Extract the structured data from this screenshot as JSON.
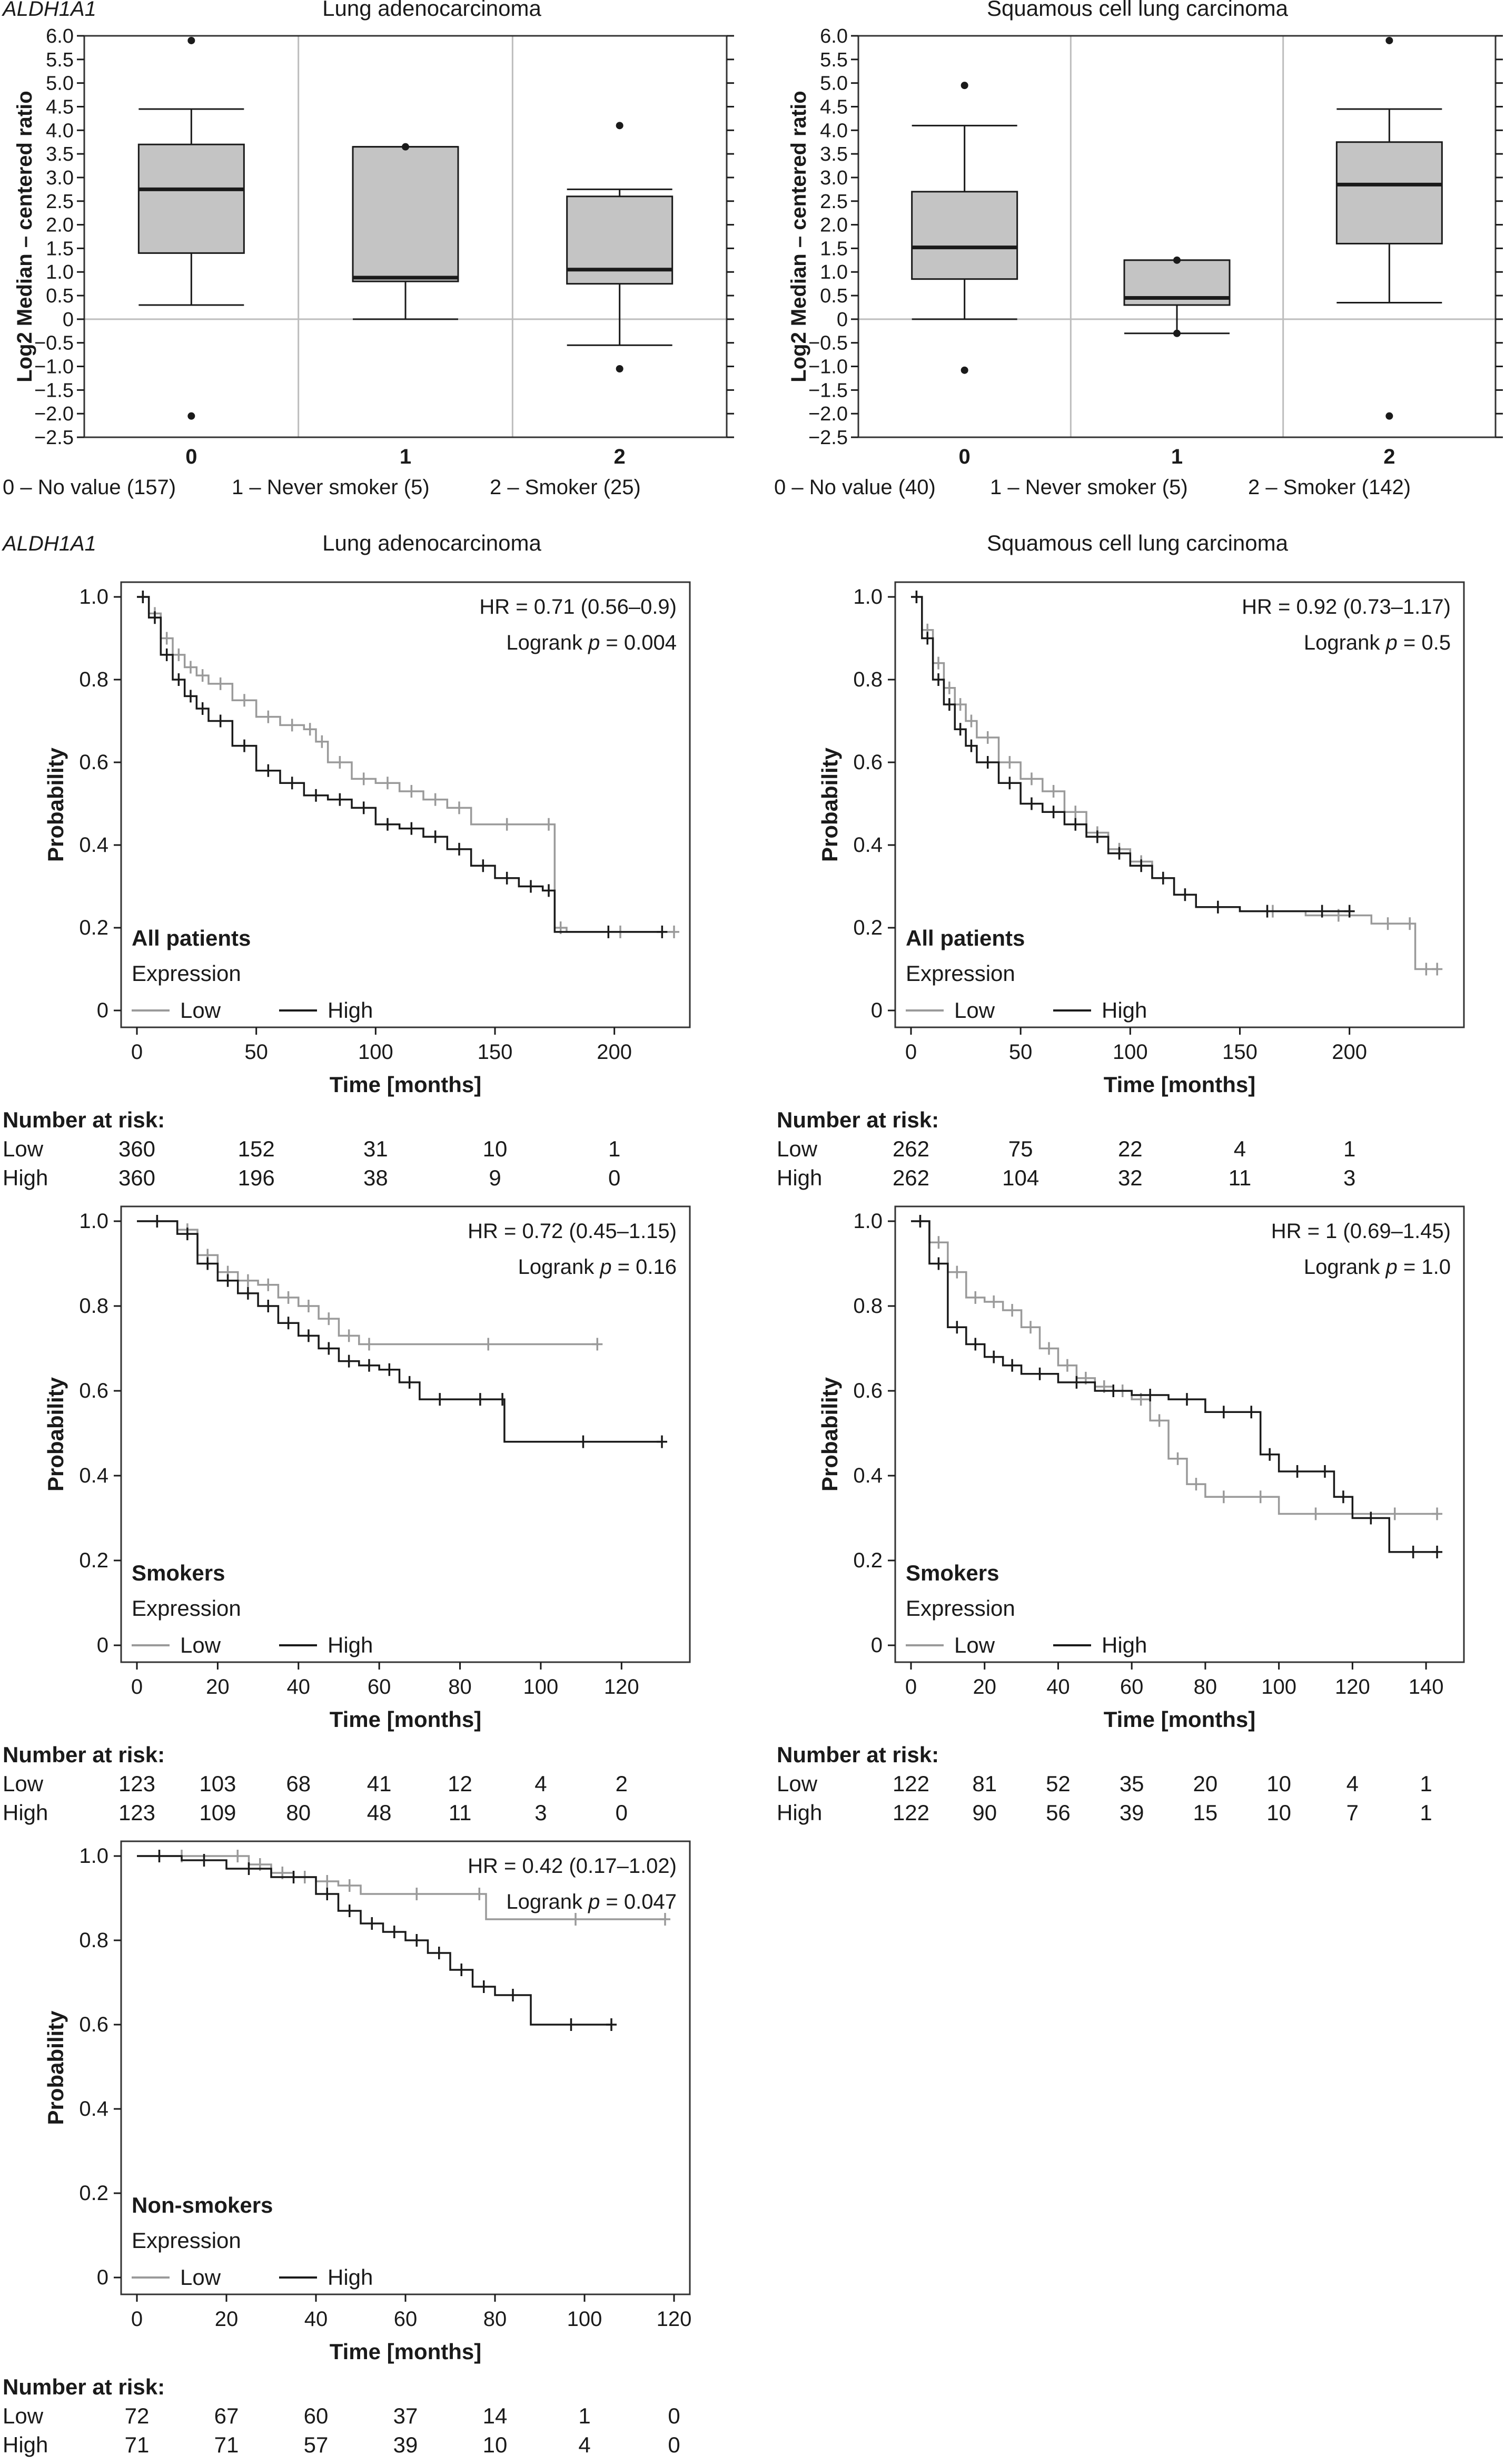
{
  "colors": {
    "low": "#9a9a9a",
    "high": "#1a1a1a",
    "box_fill": "#c4c4c4",
    "grid": "#bdbdbd"
  },
  "gene": "ALDH1A1",
  "boxplot_ylabel": "Log2 Median – centered ratio",
  "km_ylabel": "Probability",
  "km_xlabel": "Time [months]",
  "expression_label": "Expression",
  "legend_low": "Low",
  "legend_high": "High",
  "risk_title": "Number at risk:",
  "chart_data": [
    {
      "id": "box_adeno",
      "type": "box",
      "title": "Lung adenocarcinoma",
      "ylim": [
        -2.5,
        6.0
      ],
      "yticks": [
        "6.0",
        "5.5",
        "5.0",
        "4.5",
        "4.0",
        "3.5",
        "3.0",
        "2.5",
        "2.0",
        "1.5",
        "1.0",
        "0.5",
        "0",
        "−0.5",
        "−1.0",
        "−1.5",
        "−2.0",
        "−2.5"
      ],
      "categories": [
        "0",
        "1",
        "2"
      ],
      "category_labels": [
        "0 – No value (157)",
        "1 – Never smoker (5)",
        "2 – Smoker (25)"
      ],
      "boxes": [
        {
          "whisker_low": 0.3,
          "q1": 1.4,
          "median": 2.75,
          "q3": 3.7,
          "whisker_high": 4.45,
          "outliers": [
            5.9,
            -2.05
          ]
        },
        {
          "whisker_low": 0.0,
          "q1": 0.8,
          "median": 0.88,
          "q3": 3.65,
          "whisker_high": 3.65,
          "outliers": [
            3.65
          ]
        },
        {
          "whisker_low": -0.55,
          "q1": 0.75,
          "median": 1.05,
          "q3": 2.6,
          "whisker_high": 2.75,
          "outliers": [
            4.1,
            -1.05
          ]
        }
      ]
    },
    {
      "id": "box_squam",
      "type": "box",
      "title": "Squamous cell lung carcinoma",
      "ylim": [
        -2.5,
        6.0
      ],
      "yticks": [
        "6.0",
        "5.5",
        "5.0",
        "4.5",
        "4.0",
        "3.5",
        "3.0",
        "2.5",
        "2.0",
        "1.5",
        "1.0",
        "0.5",
        "0",
        "−0.5",
        "−1.0",
        "−1.5",
        "−2.0",
        "−2.5"
      ],
      "categories": [
        "0",
        "1",
        "2"
      ],
      "category_labels": [
        "0 – No value (40)",
        "1 – Never smoker (5)",
        "2 – Smoker (142)"
      ],
      "boxes": [
        {
          "whisker_low": 0.0,
          "q1": 0.85,
          "median": 1.52,
          "q3": 2.7,
          "whisker_high": 4.1,
          "outliers": [
            4.95,
            -1.08
          ]
        },
        {
          "whisker_low": -0.3,
          "q1": 0.3,
          "median": 0.45,
          "q3": 1.25,
          "whisker_high": 1.25,
          "outliers": [
            1.25,
            -0.3
          ]
        },
        {
          "whisker_low": 0.35,
          "q1": 1.6,
          "median": 2.85,
          "q3": 3.75,
          "whisker_high": 4.45,
          "outliers": [
            5.9,
            -2.05
          ]
        }
      ]
    },
    {
      "id": "km_adeno_all",
      "type": "line",
      "title": "Lung adenocarcinoma",
      "group": "All patients",
      "hr": "HR = 0.71 (0.56–0.9)",
      "logrank_prefix": "Logrank ",
      "logrank_value": " = 0.004",
      "xlim": [
        0,
        225
      ],
      "xticks": [
        0,
        50,
        100,
        150,
        200
      ],
      "ylim": [
        0,
        1.05
      ],
      "yticks": [
        "0",
        "0.2",
        "0.4",
        "0.6",
        "0.8",
        "1.0"
      ],
      "series": [
        {
          "name": "Low",
          "x": [
            0,
            5,
            10,
            15,
            20,
            25,
            30,
            40,
            50,
            60,
            70,
            75,
            80,
            90,
            100,
            110,
            120,
            130,
            140,
            170,
            175,
            180,
            225
          ],
          "y": [
            1.0,
            0.96,
            0.9,
            0.86,
            0.83,
            0.81,
            0.79,
            0.75,
            0.71,
            0.69,
            0.68,
            0.65,
            0.6,
            0.56,
            0.55,
            0.53,
            0.51,
            0.49,
            0.45,
            0.45,
            0.2,
            0.19,
            0.19
          ]
        },
        {
          "name": "High",
          "x": [
            0,
            5,
            10,
            15,
            20,
            25,
            30,
            40,
            50,
            60,
            70,
            80,
            90,
            100,
            110,
            120,
            130,
            140,
            150,
            160,
            170,
            175,
            220
          ],
          "y": [
            1.0,
            0.95,
            0.86,
            0.8,
            0.76,
            0.73,
            0.7,
            0.64,
            0.58,
            0.55,
            0.52,
            0.51,
            0.49,
            0.45,
            0.44,
            0.42,
            0.39,
            0.35,
            0.32,
            0.3,
            0.29,
            0.19,
            0.19
          ]
        }
      ],
      "risk_times": [
        0,
        50,
        100,
        150,
        200
      ],
      "risk": {
        "Low": [
          "360",
          "152",
          "31",
          "10",
          "1"
        ],
        "High": [
          "360",
          "196",
          "38",
          "9",
          "0"
        ]
      }
    },
    {
      "id": "km_squam_all",
      "type": "line",
      "title": "Squamous cell lung carcinoma",
      "group": "All patients",
      "hr": "HR = 0.92 (0.73–1.17)",
      "logrank_prefix": "Logrank ",
      "logrank_value": " = 0.5",
      "xlim": [
        0,
        245
      ],
      "xticks": [
        0,
        50,
        100,
        150,
        200
      ],
      "ylim": [
        0,
        1.05
      ],
      "yticks": [
        "0",
        "0.2",
        "0.4",
        "0.6",
        "0.8",
        "1.0"
      ],
      "series": [
        {
          "name": "Low",
          "x": [
            0,
            5,
            10,
            15,
            20,
            25,
            30,
            40,
            50,
            60,
            70,
            80,
            90,
            100,
            110,
            120,
            130,
            150,
            180,
            210,
            225,
            230,
            240
          ],
          "y": [
            1.0,
            0.92,
            0.84,
            0.78,
            0.74,
            0.7,
            0.66,
            0.6,
            0.56,
            0.53,
            0.48,
            0.43,
            0.39,
            0.36,
            0.32,
            0.28,
            0.25,
            0.24,
            0.23,
            0.21,
            0.21,
            0.1,
            0.1
          ]
        },
        {
          "name": "High",
          "x": [
            0,
            5,
            10,
            15,
            20,
            25,
            30,
            40,
            50,
            60,
            70,
            80,
            90,
            100,
            110,
            120,
            130,
            150,
            175,
            200
          ],
          "y": [
            1.0,
            0.9,
            0.8,
            0.74,
            0.68,
            0.64,
            0.6,
            0.55,
            0.5,
            0.48,
            0.45,
            0.42,
            0.38,
            0.35,
            0.32,
            0.28,
            0.25,
            0.24,
            0.24,
            0.24
          ]
        }
      ],
      "risk_times": [
        0,
        50,
        100,
        150,
        200
      ],
      "risk": {
        "Low": [
          "262",
          "75",
          "22",
          "4",
          "1"
        ],
        "High": [
          "262",
          "104",
          "32",
          "11",
          "3"
        ]
      }
    },
    {
      "id": "km_adeno_smokers",
      "type": "line",
      "group": "Smokers",
      "hr": "HR = 0.72 (0.45–1.15)",
      "logrank_prefix": "Logrank ",
      "logrank_value": " = 0.16",
      "xlim": [
        0,
        133
      ],
      "xticks": [
        0,
        20,
        40,
        60,
        80,
        100,
        120
      ],
      "ylim": [
        0,
        1.05
      ],
      "yticks": [
        "0",
        "0.2",
        "0.4",
        "0.6",
        "0.8",
        "1.0"
      ],
      "series": [
        {
          "name": "Low",
          "x": [
            0,
            10,
            15,
            20,
            25,
            30,
            35,
            40,
            45,
            50,
            55,
            60,
            114
          ],
          "y": [
            1.0,
            0.98,
            0.92,
            0.88,
            0.86,
            0.85,
            0.82,
            0.8,
            0.77,
            0.73,
            0.71,
            0.71,
            0.71
          ]
        },
        {
          "name": "High",
          "x": [
            0,
            10,
            15,
            20,
            25,
            30,
            35,
            40,
            45,
            50,
            55,
            60,
            65,
            70,
            80,
            90,
            91,
            130
          ],
          "y": [
            1.0,
            0.97,
            0.9,
            0.86,
            0.83,
            0.8,
            0.76,
            0.73,
            0.7,
            0.67,
            0.66,
            0.65,
            0.62,
            0.58,
            0.58,
            0.58,
            0.48,
            0.48
          ]
        }
      ],
      "risk_times": [
        0,
        20,
        40,
        60,
        80,
        100,
        120
      ],
      "risk": {
        "Low": [
          "123",
          "103",
          "68",
          "41",
          "12",
          "4",
          "2"
        ],
        "High": [
          "123",
          "109",
          "80",
          "48",
          "11",
          "3",
          "0"
        ]
      }
    },
    {
      "id": "km_squam_smokers",
      "type": "line",
      "group": "Smokers",
      "hr": "HR = 1 (0.69–1.45)",
      "logrank_prefix": "Logrank ",
      "logrank_value": " = 1.0",
      "xlim": [
        0,
        146
      ],
      "xticks": [
        0,
        20,
        40,
        60,
        80,
        100,
        120,
        140
      ],
      "ylim": [
        0,
        1.05
      ],
      "yticks": [
        "0",
        "0.2",
        "0.4",
        "0.6",
        "0.8",
        "1.0"
      ],
      "series": [
        {
          "name": "Low",
          "x": [
            0,
            5,
            10,
            15,
            20,
            25,
            30,
            35,
            40,
            45,
            50,
            55,
            60,
            65,
            70,
            75,
            80,
            90,
            100,
            120,
            143
          ],
          "y": [
            1.0,
            0.95,
            0.88,
            0.82,
            0.81,
            0.79,
            0.75,
            0.7,
            0.66,
            0.63,
            0.61,
            0.6,
            0.58,
            0.53,
            0.44,
            0.38,
            0.35,
            0.35,
            0.31,
            0.31,
            0.31
          ]
        },
        {
          "name": "High",
          "x": [
            0,
            5,
            10,
            15,
            20,
            25,
            30,
            40,
            50,
            60,
            70,
            80,
            90,
            95,
            100,
            110,
            115,
            120,
            130,
            143
          ],
          "y": [
            1.0,
            0.9,
            0.75,
            0.71,
            0.68,
            0.66,
            0.64,
            0.62,
            0.6,
            0.59,
            0.58,
            0.55,
            0.55,
            0.45,
            0.41,
            0.41,
            0.35,
            0.3,
            0.22,
            0.22
          ]
        }
      ],
      "risk_times": [
        0,
        20,
        40,
        60,
        80,
        100,
        120,
        140
      ],
      "risk": {
        "Low": [
          "122",
          "81",
          "52",
          "35",
          "20",
          "10",
          "4",
          "1"
        ],
        "High": [
          "122",
          "90",
          "56",
          "39",
          "15",
          "10",
          "7",
          "1"
        ]
      }
    },
    {
      "id": "km_adeno_nonsmokers",
      "type": "line",
      "group": "Non-smokers",
      "hr": "HR = 0.42 (0.17–1.02)",
      "logrank_prefix": "Logrank ",
      "logrank_value": " = 0.047",
      "xlim": [
        0,
        120
      ],
      "xticks": [
        0,
        20,
        40,
        60,
        80,
        100,
        120
      ],
      "ylim": [
        0,
        1.05
      ],
      "yticks": [
        "0",
        "0.2",
        "0.4",
        "0.6",
        "0.8",
        "1.0"
      ],
      "series": [
        {
          "name": "Low",
          "x": [
            0,
            20,
            25,
            30,
            35,
            40,
            45,
            50,
            75,
            78,
            118
          ],
          "y": [
            1.0,
            1.0,
            0.98,
            0.96,
            0.95,
            0.94,
            0.93,
            0.91,
            0.91,
            0.85,
            0.85
          ]
        },
        {
          "name": "High",
          "x": [
            0,
            10,
            20,
            30,
            40,
            45,
            50,
            55,
            60,
            65,
            70,
            75,
            80,
            88,
            106
          ],
          "y": [
            1.0,
            0.99,
            0.97,
            0.95,
            0.91,
            0.87,
            0.84,
            0.82,
            0.8,
            0.77,
            0.73,
            0.69,
            0.67,
            0.6,
            0.6
          ]
        }
      ],
      "risk_times": [
        0,
        20,
        40,
        60,
        80,
        100,
        120
      ],
      "risk": {
        "Low": [
          "72",
          "67",
          "60",
          "37",
          "14",
          "1",
          "0"
        ],
        "High": [
          "71",
          "71",
          "57",
          "39",
          "10",
          "4",
          "0"
        ]
      }
    }
  ]
}
